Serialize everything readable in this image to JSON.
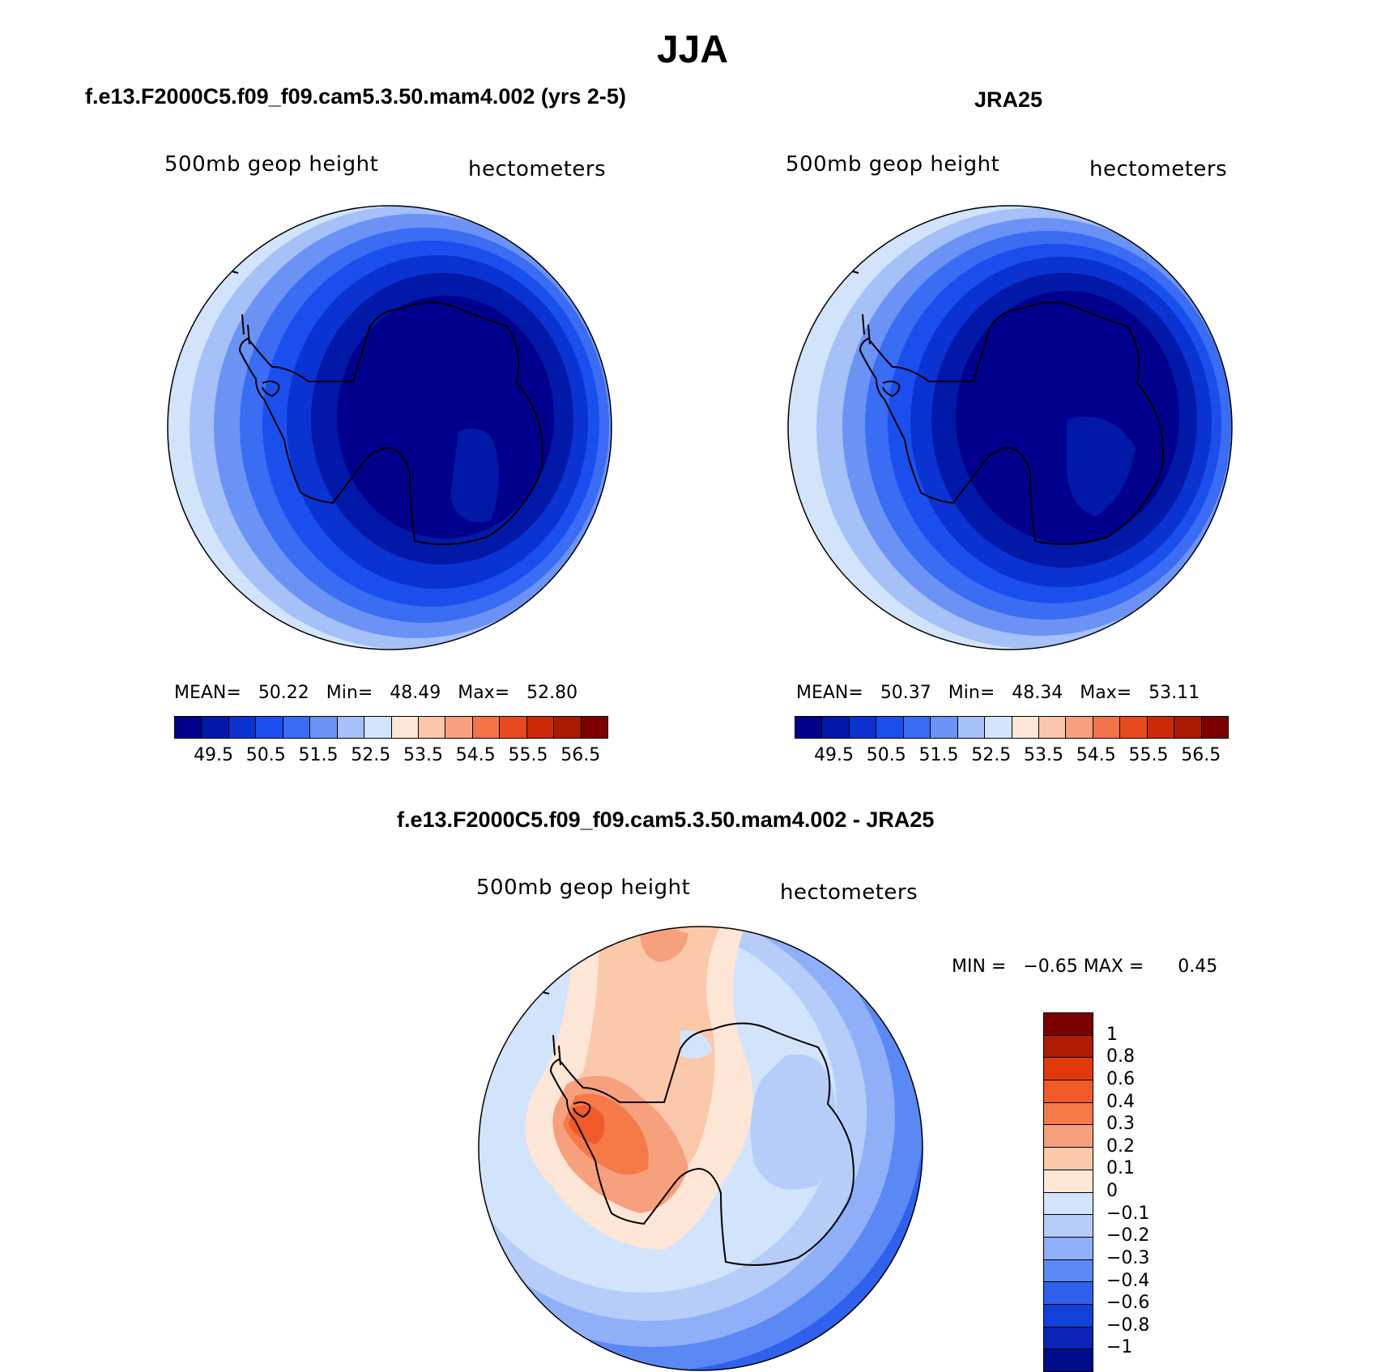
{
  "figure": {
    "title": "JJA"
  },
  "panels": {
    "model": {
      "title": "f.e13.F2000C5.f09_f09.cam5.3.50.mam4.002 (yrs 2-5)",
      "variable": "500mb geop height",
      "units": "hectometers",
      "stats": {
        "mean_label": "MEAN=",
        "mean": "50.22",
        "min_label": "Min=",
        "min": "48.49",
        "max_label": "Max=",
        "max": "52.80"
      }
    },
    "obs": {
      "title": "JRA25",
      "variable": "500mb geop height",
      "units": "hectometers",
      "stats": {
        "mean_label": "MEAN=",
        "mean": "50.37",
        "min_label": "Min=",
        "min": "48.34",
        "max_label": "Max=",
        "max": "53.11"
      }
    },
    "diff": {
      "title": "f.e13.F2000C5.f09_f09.cam5.3.50.mam4.002 - JRA25",
      "variable": "500mb geop height",
      "units": "hectometers",
      "minmax": {
        "min_label": "MIN =",
        "min": "−0.65",
        "max_label": "MAX =",
        "max": "0.45"
      }
    }
  },
  "colorbar_abs": {
    "colors": [
      "#00008c",
      "#0019a8",
      "#0a33d2",
      "#1a4fee",
      "#3a6cf4",
      "#6b93f6",
      "#a6c0f8",
      "#d2e4fb",
      "#fde6d5",
      "#fbc6aa",
      "#f7a07e",
      "#f27448",
      "#e84a1e",
      "#cc2a06",
      "#aa1a04",
      "#7d0101"
    ],
    "tick_labels": [
      "49.5",
      "50.5",
      "51.5",
      "52.5",
      "53.5",
      "54.5",
      "55.5",
      "56.5"
    ]
  },
  "colorbar_diff": {
    "colors": [
      "#7d0101",
      "#b01b04",
      "#e03a0a",
      "#f05a28",
      "#f57a48",
      "#f7a07e",
      "#fbc8aa",
      "#fde6d5",
      "#d2e4fb",
      "#b6cdfa",
      "#8fb0f8",
      "#5a88f4",
      "#2f60ee",
      "#1240d8",
      "#0a24b8",
      "#000d8c"
    ],
    "tick_labels": [
      "1",
      "0.8",
      "0.6",
      "0.4",
      "0.3",
      "0.2",
      "0.1",
      "0",
      "−0.1",
      "−0.2",
      "−0.3",
      "−0.4",
      "−0.6",
      "−0.8",
      "−1"
    ]
  },
  "chart_data": [
    {
      "type": "contour_map",
      "projection": "south polar stereographic",
      "title": "f.e13.F2000C5.f09_f09.cam5.3.50.mam4.002 (yrs 2-5)",
      "variable": "500mb geop height",
      "units": "hectometers",
      "levels": [
        49.5,
        50,
        50.5,
        51,
        51.5,
        52,
        52.5,
        53,
        53.5,
        54,
        54.5,
        55,
        55.5,
        56,
        56.5
      ],
      "mean": 50.22,
      "min": 48.49,
      "max": 52.8
    },
    {
      "type": "contour_map",
      "projection": "south polar stereographic",
      "title": "JRA25",
      "variable": "500mb geop height",
      "units": "hectometers",
      "levels": [
        49.5,
        50,
        50.5,
        51,
        51.5,
        52,
        52.5,
        53,
        53.5,
        54,
        54.5,
        55,
        55.5,
        56,
        56.5
      ],
      "mean": 50.37,
      "min": 48.34,
      "max": 53.11
    },
    {
      "type": "contour_map",
      "projection": "south polar stereographic",
      "title": "f.e13.F2000C5.f09_f09.cam5.3.50.mam4.002 - JRA25",
      "variable": "500mb geop height",
      "units": "hectometers",
      "levels": [
        -1,
        -0.8,
        -0.6,
        -0.4,
        -0.3,
        -0.2,
        -0.1,
        0,
        0.1,
        0.2,
        0.3,
        0.4,
        0.6,
        0.8,
        1
      ],
      "min": -0.65,
      "max": 0.45
    }
  ]
}
